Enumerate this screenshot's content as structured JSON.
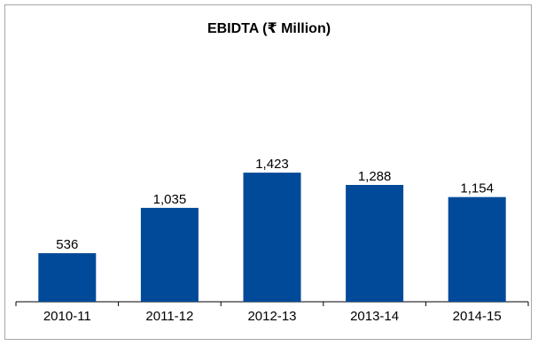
{
  "chart_data": {
    "type": "bar",
    "title": "EBIDTA (₹ Million)",
    "xlabel": "",
    "ylabel": "",
    "categories": [
      "2010-11",
      "2011-12",
      "2012-13",
      "2013-14",
      "2014-15"
    ],
    "values": [
      536,
      1035,
      1423,
      1288,
      1154
    ],
    "data_labels": [
      "536",
      "1,035",
      "1,423",
      "1,288",
      "1,154"
    ],
    "ylim": [
      0,
      2000
    ],
    "grid": false,
    "legend": "none",
    "colors": {
      "bar": "#004a99",
      "axis": "#000000",
      "border": "#a6a6a6"
    }
  }
}
